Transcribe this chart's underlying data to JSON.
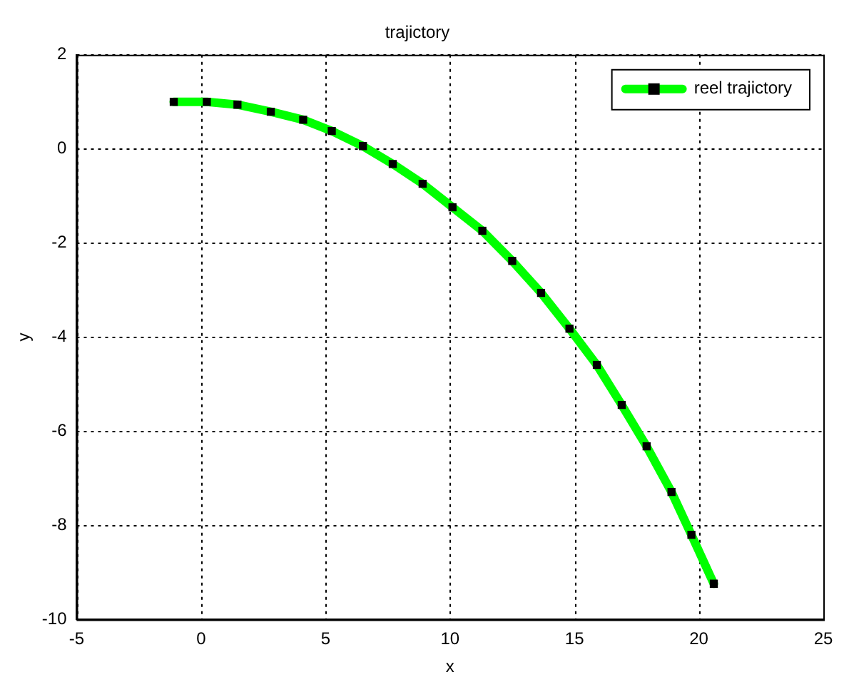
{
  "chart_data": {
    "type": "line",
    "title": "trajictory",
    "xlabel": "x",
    "ylabel": "y",
    "xlim": [
      -5,
      25
    ],
    "xticks": [
      -5,
      0,
      5,
      10,
      15,
      20,
      25
    ],
    "ylim": [
      -10,
      2
    ],
    "yticks": [
      -10,
      -8,
      -6,
      -4,
      -2,
      0,
      2
    ],
    "grid": true,
    "legend": "top right",
    "marker": "square",
    "line_style": "solid",
    "series": [
      {
        "name": "reel trajictory",
        "color": "#00ff00",
        "x": [
          -1.1,
          0.23,
          1.46,
          2.8,
          4.1,
          5.25,
          6.5,
          7.7,
          8.9,
          10.1,
          11.3,
          12.5,
          13.66,
          14.8,
          15.9,
          16.9,
          17.9,
          18.9,
          19.7,
          20.6
        ],
        "values": [
          1.0,
          1.0,
          0.94,
          0.79,
          0.62,
          0.38,
          0.06,
          -0.32,
          -0.74,
          -1.24,
          -1.74,
          -2.38,
          -3.06,
          -3.82,
          -4.59,
          -5.44,
          -6.32,
          -7.29,
          -8.2,
          -9.24
        ]
      }
    ]
  }
}
